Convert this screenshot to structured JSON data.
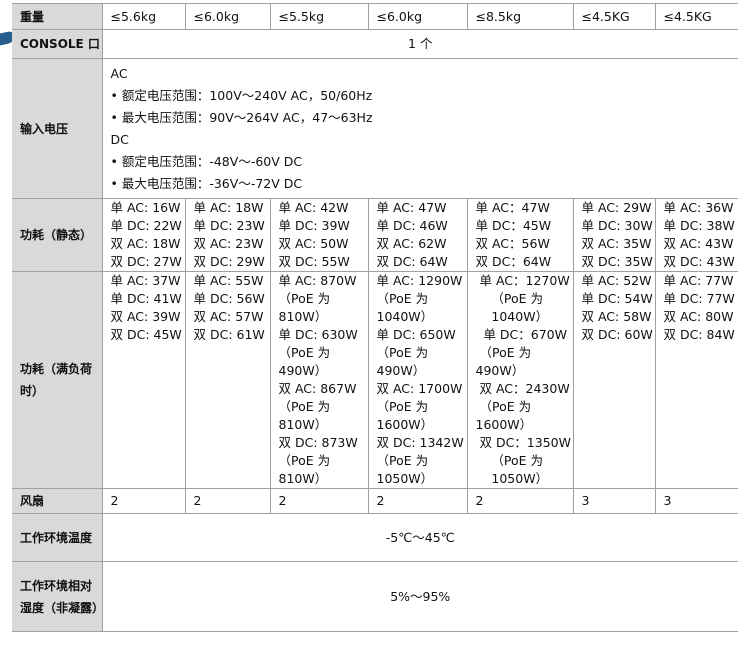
{
  "rows": {
    "weight": {
      "label": "重量",
      "values": [
        "≤5.6kg",
        "≤6.0kg",
        "≤5.5kg",
        "≤6.0kg",
        "≤8.5kg",
        "≤4.5KG",
        "≤4.5KG"
      ]
    },
    "console": {
      "label": "CONSOLE 口",
      "value": "1 个"
    },
    "input_voltage": {
      "label": "输入电压",
      "ac_title": "AC",
      "ac_items": [
        "•  额定电压范围：100V～240V AC，50/60Hz",
        "•  最大电压范围：90V～264V AC，47～63Hz"
      ],
      "dc_title": "DC",
      "dc_items": [
        "•  额定电压范围：-48V～-60V DC",
        "•  最大电压范围：-36V～-72V DC"
      ]
    },
    "power_static": {
      "label": "功耗（静态）",
      "values": [
        "单 AC: 16W\n单 DC: 22W\n双 AC: 18W\n双 DC: 27W",
        "单 AC: 18W\n单 DC: 23W\n双 AC: 23W\n双 DC: 29W",
        "单 AC: 42W\n单 DC: 39W\n双 AC: 50W\n双 DC: 55W",
        "单 AC: 47W\n单 DC: 46W\n双 AC: 62W\n双 DC: 64W",
        "单 AC：47W\n单 DC：45W\n双 AC：56W\n双 DC：64W",
        "单 AC: 29W\n单 DC: 30W\n双 AC: 35W\n双 DC: 35W",
        "单 AC: 36W\n单 DC: 38W\n双 AC: 43W\n双 DC: 43W"
      ]
    },
    "power_full": {
      "label": "功耗（满负荷时）",
      "values": [
        "单 AC: 37W\n单 DC: 41W\n双 AC: 39W\n双 DC: 45W",
        "单 AC: 55W\n单 DC: 56W\n双 AC: 57W\n双 DC: 61W",
        "单 AC: 870W\n（PoE 为\n810W）\n单 DC: 630W\n（PoE 为\n490W）\n双 AC: 867W\n（PoE 为\n810W）\n双 DC: 873W\n（PoE 为\n810W）",
        "单 AC: 1290W\n（PoE 为\n1040W）\n单 DC: 650W\n（PoE 为\n490W）\n双 AC: 1700W\n（PoE 为\n1600W）\n双 DC: 1342W\n（PoE 为\n1050W）",
        " 单 AC：1270W\n    （PoE 为\n    1040W）\n  单 DC：670W\n （PoE 为\n490W）\n 双 AC：2430W\n （PoE 为\n1600W）\n 双 DC：1350W\n    （PoE 为\n    1050W）",
        "单 AC: 52W\n单 DC: 54W\n双 AC: 58W\n双 DC: 60W",
        "单 AC: 77W\n单 DC: 77W\n双 AC: 80W\n双 DC: 84W"
      ]
    },
    "fan": {
      "label": "风扇",
      "values": [
        "2",
        "2",
        "2",
        "2",
        "2",
        "3",
        "3"
      ]
    },
    "temperature": {
      "label": "工作环境温度",
      "value": "-5℃～45℃"
    },
    "humidity": {
      "label": "工作环境相对湿度（非凝露）",
      "value": "5%～95%"
    }
  }
}
